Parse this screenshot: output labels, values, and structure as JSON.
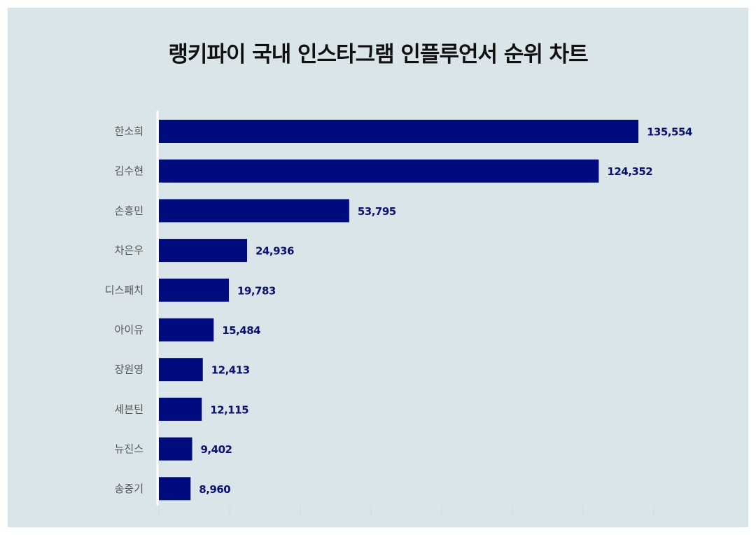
{
  "chart_data": {
    "type": "bar",
    "orientation": "horizontal",
    "title": "랭키파이 국내 인스타그램 인플루언서 순위 차트",
    "xlabel": "",
    "ylabel": "",
    "categories": [
      "한소희",
      "김수현",
      "손흥민",
      "차은우",
      "디스패치",
      "아이유",
      "장원영",
      "세븐틴",
      "뉴진스",
      "송중기"
    ],
    "values": [
      135554,
      124352,
      53795,
      24936,
      19783,
      15484,
      12413,
      12115,
      9402,
      8960
    ],
    "value_labels": [
      "135,554",
      "124,352",
      "53,795",
      "24,936",
      "19,783",
      "15,484",
      "12,413",
      "12,115",
      "9,402",
      "8,960"
    ],
    "xlim": [
      0,
      140000
    ],
    "grid": false,
    "legend": "none",
    "colors": {
      "bar": "#000c7e",
      "value_label": "#0a1270",
      "category_label": "#555555",
      "background": "#dae5e9"
    }
  }
}
